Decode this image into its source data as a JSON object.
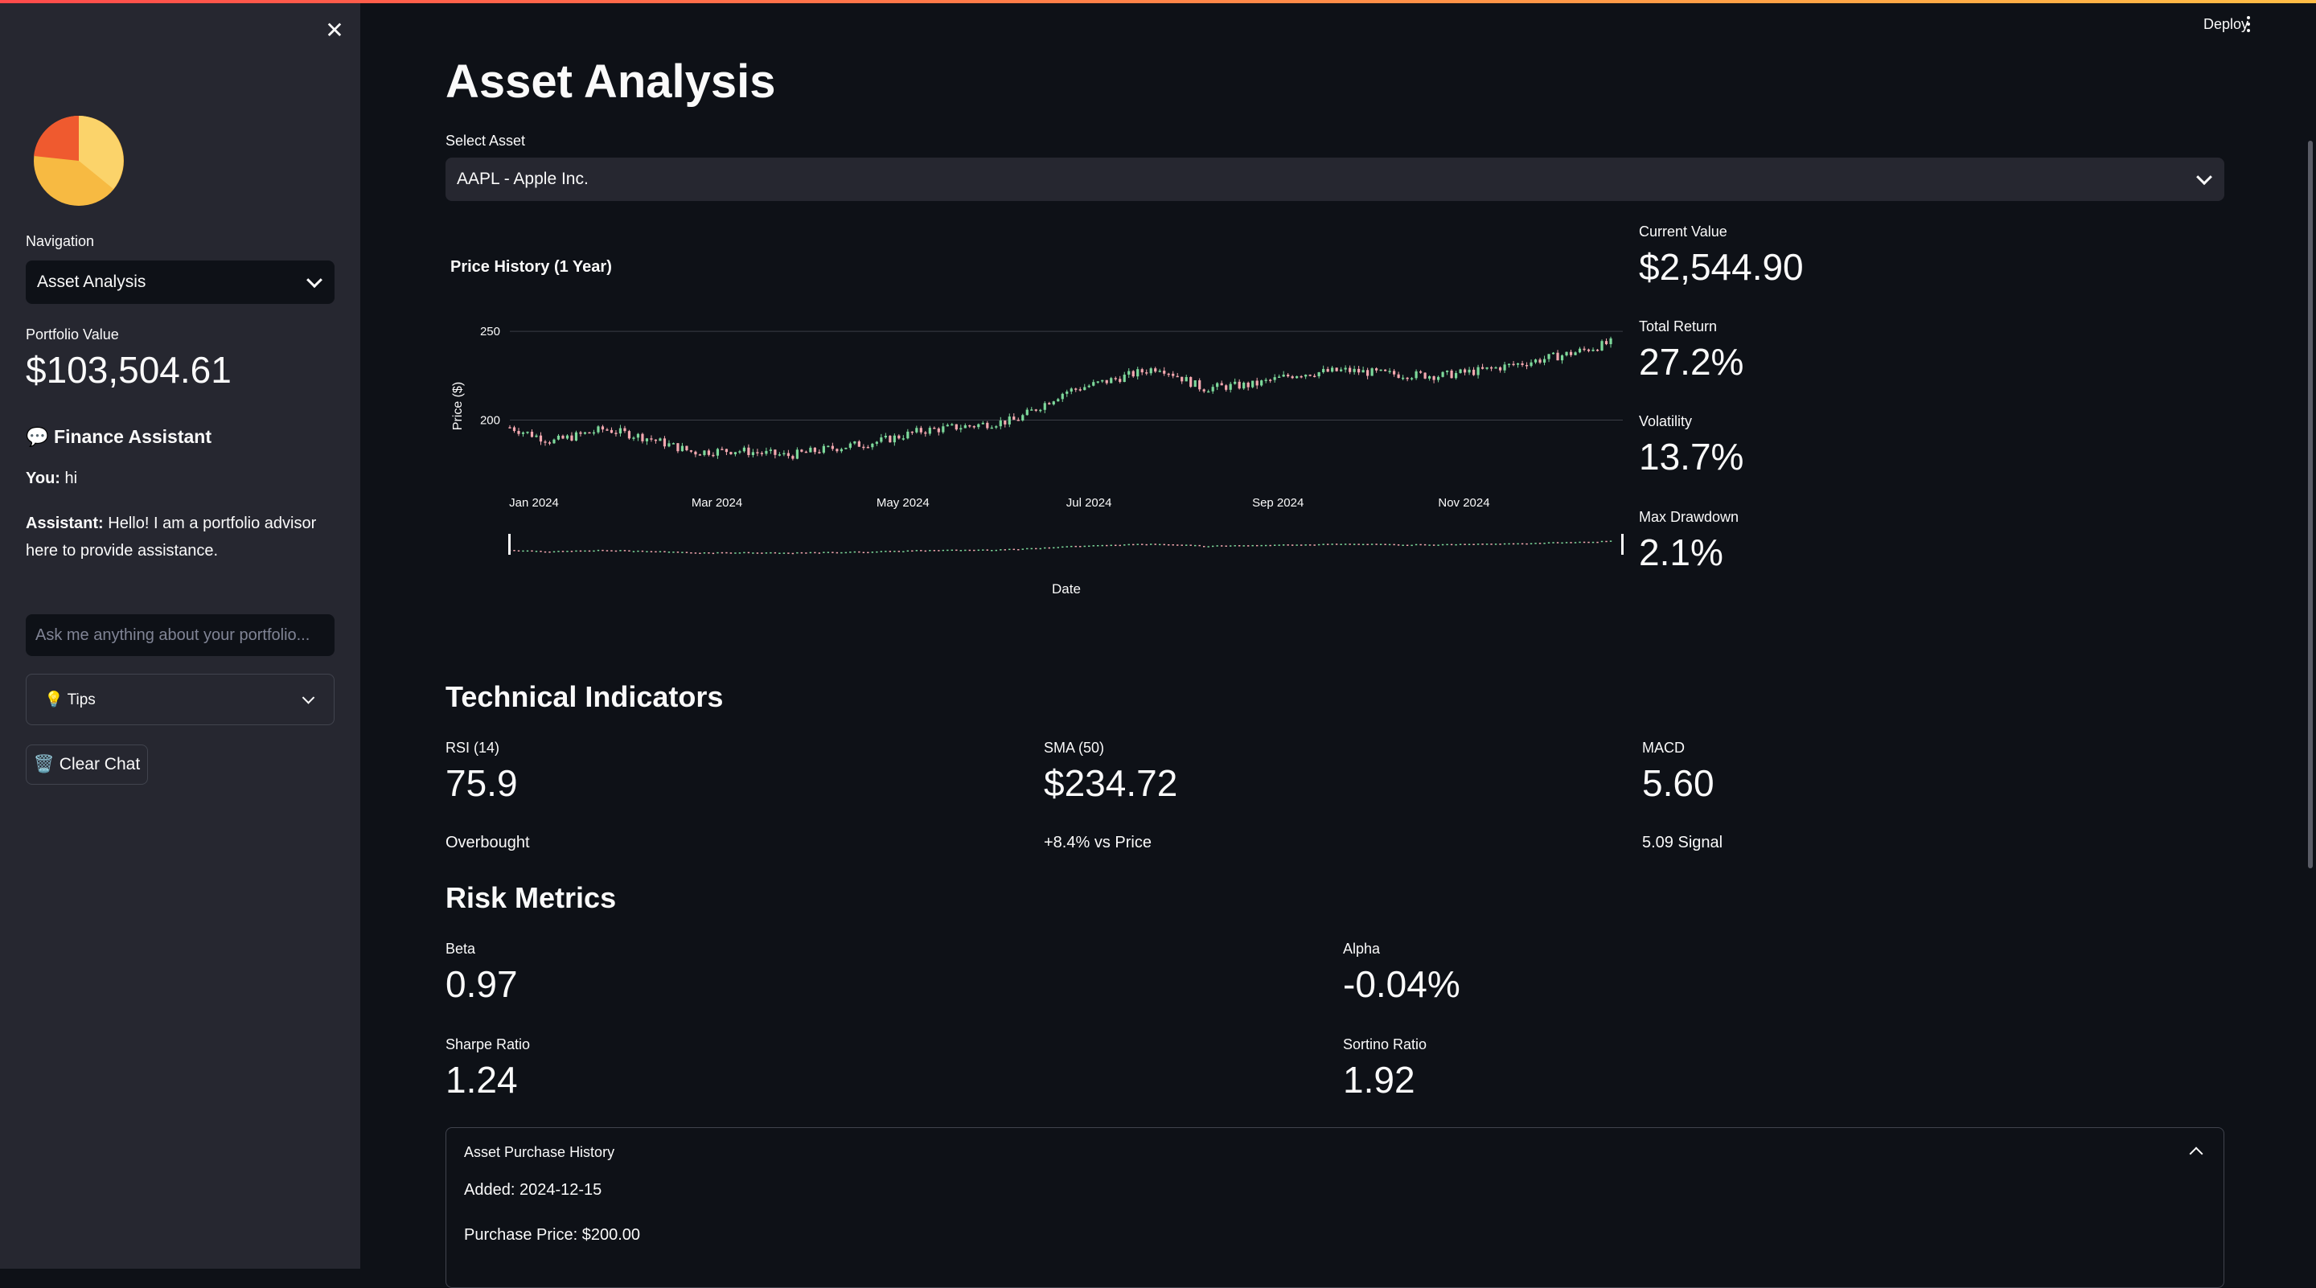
{
  "header": {
    "deploy_label": "Deploy",
    "menu_icon": "kebab-menu-icon"
  },
  "sidebar": {
    "close_icon": "close-icon",
    "navigation_label": "Navigation",
    "navigation_value": "Asset Analysis",
    "portfolio_label": "Portfolio Value",
    "portfolio_value": "$103,504.61",
    "assistant_title": "💬 Finance Assistant",
    "chat": [
      {
        "speaker": "You:",
        "text": " hi"
      },
      {
        "speaker": "Assistant:",
        "text": " Hello! I am a portfolio advisor here to provide assistance."
      }
    ],
    "chat_placeholder": "Ask me anything about your portfolio...",
    "tips_label": "💡 Tips",
    "clear_chat_label": "🗑️ Clear Chat",
    "logo_colors": [
      "#f7ba42",
      "#fbd36a",
      "#ef5a2f"
    ]
  },
  "main": {
    "title": "Asset Analysis",
    "select_label": "Select Asset",
    "select_value": "AAPL - Apple Inc.",
    "chart_title": "Price History (1 Year)",
    "kpis": [
      {
        "label": "Current Value",
        "value": "$2,544.90"
      },
      {
        "label": "Total Return",
        "value": "27.2%"
      },
      {
        "label": "Volatility",
        "value": "13.7%"
      },
      {
        "label": "Max Drawdown",
        "value": "2.1%"
      }
    ],
    "technical": {
      "title": "Technical Indicators",
      "items": [
        {
          "label": "RSI (14)",
          "value": "75.9",
          "sub": "Overbought"
        },
        {
          "label": "SMA (50)",
          "value": "$234.72",
          "sub": "+8.4% vs Price"
        },
        {
          "label": "MACD",
          "value": "5.60",
          "sub": "5.09 Signal"
        }
      ]
    },
    "risk": {
      "title": "Risk Metrics",
      "items": [
        {
          "label": "Beta",
          "value": "0.97"
        },
        {
          "label": "Alpha",
          "value": "-0.04%"
        },
        {
          "label": "Sharpe Ratio",
          "value": "1.24"
        },
        {
          "label": "Sortino Ratio",
          "value": "1.92"
        }
      ]
    },
    "purchase_history": {
      "title": "Asset Purchase History",
      "added": "Added: 2024-12-15",
      "price": "Purchase Price: $200.00"
    }
  },
  "chart_data": {
    "type": "candlestick",
    "title": "Price History (1 Year)",
    "xlabel": "Date",
    "ylabel": "Price ($)",
    "x_ticks": [
      "Jan 2024",
      "Mar 2024",
      "May 2024",
      "Jul 2024",
      "Sep 2024",
      "Nov 2024"
    ],
    "y_ticks": [
      200,
      250
    ],
    "ylim": [
      174,
      260
    ],
    "colors": {
      "up": "#7dd99b",
      "down": "#f4a8b0",
      "grid": "#3a3d46"
    },
    "x": [
      "2024-01-01",
      "2024-01-15",
      "2024-02-01",
      "2024-02-15",
      "2024-03-01",
      "2024-03-15",
      "2024-04-01",
      "2024-04-15",
      "2024-05-01",
      "2024-05-15",
      "2024-06-01",
      "2024-06-15",
      "2024-07-01",
      "2024-07-15",
      "2024-08-01",
      "2024-08-15",
      "2024-09-01",
      "2024-09-15",
      "2024-10-01",
      "2024-10-15",
      "2024-11-01",
      "2024-11-15",
      "2024-12-01",
      "2024-12-15",
      "2024-12-28"
    ],
    "close": [
      196,
      188,
      195,
      190,
      182,
      183,
      180,
      184,
      188,
      194,
      197,
      200,
      216,
      222,
      230,
      218,
      220,
      226,
      228,
      226,
      225,
      228,
      233,
      238,
      244
    ]
  }
}
